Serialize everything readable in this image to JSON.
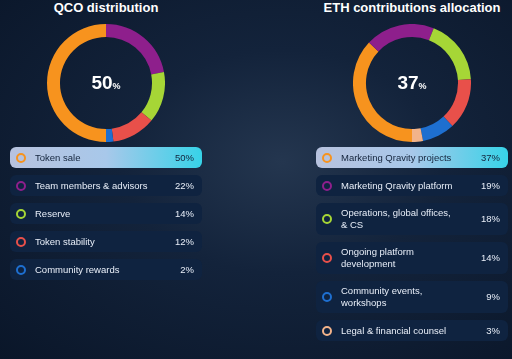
{
  "chart_data": [
    {
      "type": "doughnut",
      "title": "QCO distribution",
      "annotation": "50%",
      "categories": [
        "Token sale",
        "Team members & advisors",
        "Reserve",
        "Token stability",
        "Community rewards"
      ],
      "values": [
        50,
        22,
        14,
        12,
        2
      ],
      "value_labels": [
        "50%",
        "22%",
        "14%",
        "12%",
        "2%"
      ],
      "colors": [
        "#f7931e",
        "#8e1f8c",
        "#a6d636",
        "#e8504a",
        "#1e6fd0"
      ]
    },
    {
      "type": "doughnut",
      "title": "ETH contributions allocation",
      "annotation": "37%",
      "categories": [
        "Marketing Qravity projects",
        "Marketing Qravity platform",
        "Operations, global offices, & CS",
        "Ongoing platform development",
        "Community events, workshops",
        "Legal & financial counsel"
      ],
      "values": [
        37,
        19,
        18,
        14,
        9,
        3
      ],
      "value_labels": [
        "37%",
        "19%",
        "18%",
        "14%",
        "9%",
        "3%"
      ],
      "colors": [
        "#f7931e",
        "#8e1f8c",
        "#a6d636",
        "#e8504a",
        "#1e6fd0",
        "#f2b38a"
      ]
    }
  ]
}
